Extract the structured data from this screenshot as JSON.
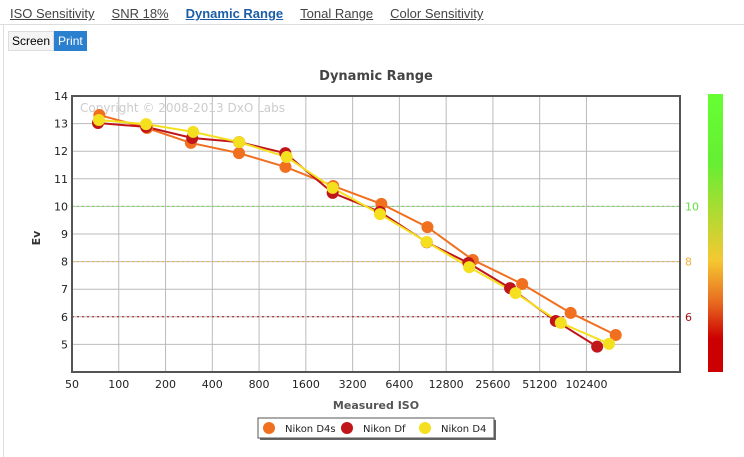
{
  "tabs": [
    "ISO Sensitivity",
    "SNR 18%",
    "Dynamic Range",
    "Tonal Range",
    "Color Sensitivity"
  ],
  "active_tab": "Dynamic Range",
  "mode_buttons": {
    "screen": "Screen",
    "print": "Print",
    "selected": "Print"
  },
  "chart_data": {
    "type": "line",
    "title": "Dynamic Range",
    "watermark": "Copyright © 2008-2013 DxO Labs",
    "xlabel": "Measured ISO",
    "ylabel": "Ev",
    "xscale": "log2",
    "xlim": [
      50,
      409600
    ],
    "ylim": [
      4,
      14
    ],
    "xticks": [
      "50",
      "100",
      "200",
      "400",
      "800",
      "1600",
      "3200",
      "6400",
      "12800",
      "25600",
      "51200",
      "102400"
    ],
    "yticks": [
      "5",
      "6",
      "7",
      "8",
      "9",
      "10",
      "11",
      "12",
      "13",
      "14"
    ],
    "reference_lines": [
      {
        "y": 10,
        "label": "10",
        "color": "#66dd44"
      },
      {
        "y": 8,
        "label": "8",
        "color": "#f0b030"
      },
      {
        "y": 6,
        "label": "6",
        "color": "#a01010"
      }
    ],
    "colorbar": {
      "colors": [
        "#66ff33",
        "#66ee33",
        "#f5c832",
        "#e86a20",
        "#cc0000",
        "#cc0000"
      ]
    },
    "legend": "bottom",
    "series": [
      {
        "name": "Nikon D4s",
        "color": "#f07020",
        "x": [
          75,
          152,
          291,
          594,
          1183,
          2400,
          4900,
          9700,
          19000,
          39500,
          81000,
          158000
        ],
        "y": [
          13.31,
          12.84,
          12.3,
          11.93,
          11.43,
          10.74,
          10.09,
          9.25,
          8.06,
          7.19,
          6.14,
          5.34
        ]
      },
      {
        "name": "Nikon Df",
        "color": "#c0161a",
        "x": [
          73.5,
          150,
          297,
          595,
          1180,
          2380,
          4800,
          9600,
          17800,
          33000,
          65000,
          120000
        ],
        "y": [
          13.02,
          12.88,
          12.48,
          12.33,
          11.93,
          10.49,
          9.8,
          8.7,
          7.95,
          7.04,
          5.85,
          4.92
        ]
      },
      {
        "name": "Nikon D4",
        "color": "#f5e020",
        "x": [
          74.5,
          150,
          301,
          595,
          1205,
          2380,
          4800,
          9600,
          18000,
          35800,
          70000,
          143000
        ],
        "y": [
          13.13,
          12.98,
          12.7,
          12.33,
          11.79,
          10.67,
          9.72,
          8.71,
          7.8,
          6.86,
          5.78,
          5.02
        ]
      }
    ]
  }
}
